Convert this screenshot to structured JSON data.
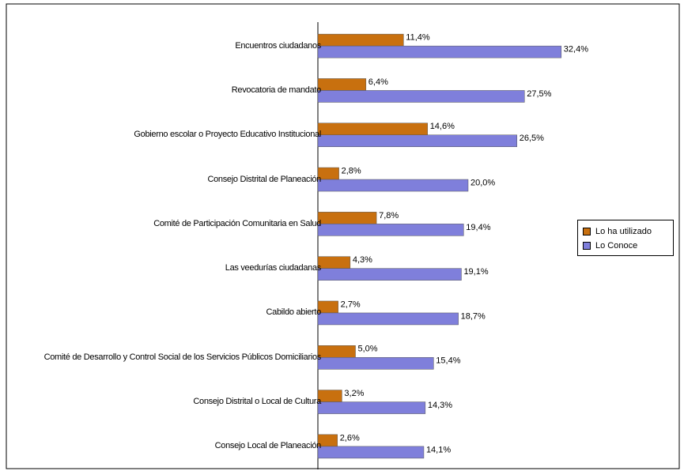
{
  "chart_data": {
    "type": "bar",
    "orientation": "horizontal",
    "categories": [
      "Encuentros ciudadanos",
      "Revocatoria de mandato",
      "Gobierno escolar o Proyecto Educativo Institucional",
      "Consejo Distrital de Planeación",
      "Comité de Participación Comunitaria en Salud",
      "Las veedurías ciudadanas",
      "Cabildo abierto",
      "Comité de Desarrollo y Control Social de los Servicios Públicos Domiciliarios",
      "Consejo Distrital o Local de Cultura",
      "Consejo Local de Planeación"
    ],
    "series": [
      {
        "name": "Lo ha utilizado",
        "color": "#c8700f",
        "values": [
          11.4,
          6.4,
          14.6,
          2.8,
          7.8,
          4.3,
          2.7,
          5.0,
          3.2,
          2.6
        ],
        "value_labels": [
          "11,4%",
          "6,4%",
          "14,6%",
          "2,8%",
          "7,8%",
          "4,3%",
          "2,7%",
          "5,0%",
          "3,2%",
          "2,6%"
        ]
      },
      {
        "name": "Lo Conoce",
        "color": "#7f7fdb",
        "values": [
          32.4,
          27.5,
          26.5,
          20.0,
          19.4,
          19.1,
          18.7,
          15.4,
          14.3,
          14.1
        ],
        "value_labels": [
          "32,4%",
          "27,5%",
          "26,5%",
          "20,0%",
          "19,4%",
          "19,1%",
          "18,7%",
          "15,4%",
          "14,3%",
          "14,1%"
        ]
      }
    ],
    "legend": "right"
  }
}
